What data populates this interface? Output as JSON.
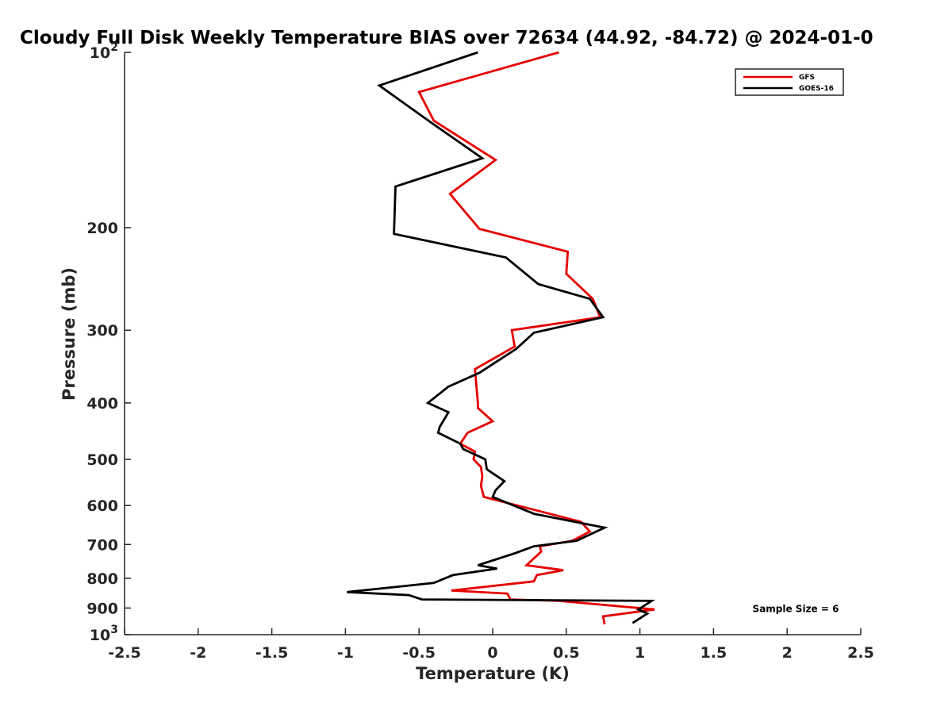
{
  "chart_data": {
    "type": "line",
    "title": "Cloudy Full Disk Weekly Temperature BIAS over 72634 (44.92, -84.72) @ 2024-01-0",
    "xlabel": "Temperature (K)",
    "ylabel": "Pressure (mb)",
    "xlim": [
      -2.5,
      2.5
    ],
    "ylim": [
      100,
      1000
    ],
    "y_scale": "log",
    "y_reversed": true,
    "x_ticks": [
      -2.5,
      -2,
      -1.5,
      -1,
      -0.5,
      0,
      0.5,
      1,
      1.5,
      2,
      2.5
    ],
    "x_tick_labels": [
      "-2.5",
      "-2",
      "-1.5",
      "-1",
      "-0.5",
      "0",
      "0.5",
      "1",
      "1.5",
      "2",
      "2.5"
    ],
    "y_ticks": [
      {
        "value": 100,
        "label": "10",
        "sup": "2"
      },
      {
        "value": 200,
        "label": "200",
        "sup": ""
      },
      {
        "value": 300,
        "label": "300",
        "sup": ""
      },
      {
        "value": 400,
        "label": "400",
        "sup": ""
      },
      {
        "value": 500,
        "label": "500",
        "sup": ""
      },
      {
        "value": 600,
        "label": "600",
        "sup": ""
      },
      {
        "value": 700,
        "label": "700",
        "sup": ""
      },
      {
        "value": 800,
        "label": "800",
        "sup": ""
      },
      {
        "value": 900,
        "label": "900",
        "sup": ""
      },
      {
        "value": 1000,
        "label": "10",
        "sup": "3"
      }
    ],
    "grid": false,
    "legend_position": "top-right",
    "annotation": "Sample Size = 6",
    "series": [
      {
        "name": "GFS",
        "color": "#e50000",
        "x": [
          0.45,
          -0.5,
          -0.4,
          0.02,
          -0.29,
          -0.09,
          0.51,
          0.5,
          0.68,
          0.73,
          0.13,
          0.15,
          -0.12,
          -0.11,
          -0.1,
          -0.1,
          0.0,
          -0.17,
          -0.22,
          -0.12,
          -0.13,
          -0.08,
          -0.07,
          -0.08,
          -0.06,
          0.6,
          0.66,
          0.54,
          0.32,
          0.33,
          0.23,
          0.48,
          0.3,
          0.28,
          -0.28,
          0.1,
          0.12,
          0.45,
          1.1,
          0.75,
          0.76
        ],
        "y": [
          100,
          117,
          131,
          153,
          175,
          201,
          220,
          240,
          265,
          285,
          300,
          320,
          350,
          375,
          400,
          408,
          430,
          450,
          470,
          485,
          500,
          515,
          535,
          555,
          580,
          640,
          665,
          690,
          705,
          720,
          760,
          775,
          790,
          810,
          840,
          850,
          870,
          875,
          905,
          930,
          960
        ]
      },
      {
        "name": "GOES-16",
        "color": "#000000",
        "x": [
          -0.1,
          -0.77,
          -0.4,
          -0.07,
          -0.66,
          -0.67,
          0.09,
          0.31,
          0.66,
          0.75,
          0.28,
          0.16,
          -0.09,
          -0.3,
          -0.44,
          -0.3,
          -0.36,
          -0.37,
          -0.22,
          -0.2,
          -0.05,
          -0.04,
          0.08,
          0.02,
          0.0,
          0.28,
          0.76,
          0.57,
          0.28,
          0.15,
          -0.1,
          0.03,
          -0.27,
          -0.4,
          -0.99,
          -0.57,
          -0.48,
          1.08,
          0.99,
          1.05,
          0.95
        ],
        "y": [
          100,
          114,
          133,
          152,
          170,
          205,
          225,
          250,
          265,
          285,
          303,
          323,
          355,
          375,
          400,
          415,
          440,
          450,
          470,
          480,
          500,
          520,
          545,
          565,
          580,
          620,
          655,
          690,
          705,
          725,
          760,
          770,
          790,
          815,
          845,
          855,
          870,
          875,
          905,
          920,
          955
        ]
      }
    ]
  }
}
